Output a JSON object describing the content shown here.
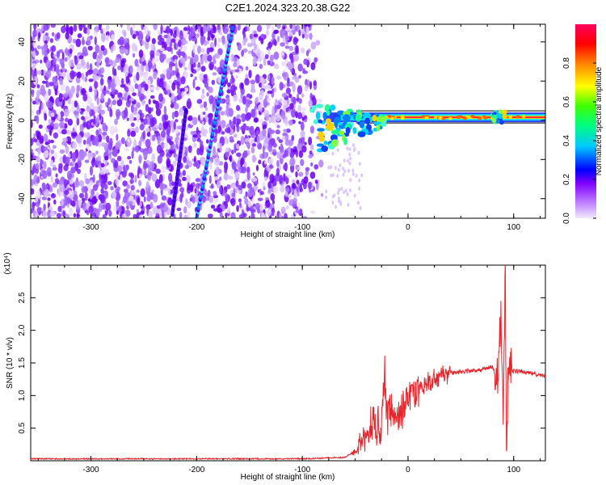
{
  "title": "C2E1.2024.323.20.38.G22",
  "chart_data": [
    {
      "type": "heatmap",
      "xlabel": "Height of straight line (km)",
      "ylabel": "Frequency (Hz)",
      "xlim": [
        -357,
        130
      ],
      "ylim": [
        -50,
        49
      ],
      "xticks": [
        -300,
        -200,
        -100,
        0,
        100
      ],
      "yticks": [
        -40,
        -20,
        0,
        20,
        40
      ],
      "colorbar": {
        "label": "Normalized spectral amplitude",
        "range": [
          0,
          1
        ],
        "ticks": [
          "0.0",
          "0.2",
          "0.4",
          "0.6",
          "0.8"
        ],
        "ticks_values": [
          0.0,
          0.2,
          0.4,
          0.6,
          0.8
        ],
        "colors": [
          "#e8d8ff",
          "#8000ff",
          "#0000ff",
          "#00ffff",
          "#00ff00",
          "#ffff00",
          "#ff8000",
          "#ff0000",
          "#ff0060"
        ]
      },
      "noise_region_x": [
        -357,
        -78
      ],
      "features": {
        "steep_streak": {
          "x": [
            -200,
            -166
          ],
          "y": [
            -50,
            47
          ]
        },
        "faint_streak": {
          "x": [
            -223,
            -210
          ],
          "y": [
            -48,
            5
          ]
        },
        "carrier_line": {
          "x": [
            -95,
            130
          ],
          "y": 1.5,
          "amplitude": 0.95
        }
      }
    },
    {
      "type": "line",
      "xlabel": "Height of straight line (km)",
      "ylabel": "SNR (10 * v/v)",
      "y_multiplier": "(x10⁴)",
      "xlim": [
        -357,
        130
      ],
      "ylim": [
        0,
        3.0
      ],
      "xticks": [
        -300,
        -200,
        -100,
        0,
        100
      ],
      "yticks": [
        "0.5",
        "1.0",
        "1.5",
        "2.0",
        "2.5"
      ],
      "yticks_values": [
        0.5,
        1.0,
        1.5,
        2.0,
        2.5
      ],
      "series": [
        {
          "color": "#e8252a",
          "x": [
            -357,
            -300,
            -200,
            -100,
            -60,
            -50,
            -45,
            -40,
            -35,
            -30,
            -25,
            -22,
            -20,
            -15,
            -10,
            -5,
            0,
            10,
            20,
            30,
            40,
            50,
            60,
            70,
            80,
            85,
            88,
            90,
            92,
            93,
            94,
            95,
            97,
            100,
            110,
            120,
            130
          ],
          "y": [
            0.03,
            0.03,
            0.03,
            0.03,
            0.05,
            0.15,
            0.3,
            0.35,
            0.5,
            0.55,
            0.6,
            1.3,
            0.7,
            0.7,
            0.6,
            0.8,
            0.95,
            1.1,
            1.2,
            1.3,
            1.35,
            1.37,
            1.38,
            1.4,
            1.45,
            1.2,
            2.4,
            0.6,
            2.9,
            0.25,
            0.9,
            1.5,
            1.35,
            1.38,
            1.36,
            1.34,
            1.3
          ]
        }
      ]
    }
  ]
}
